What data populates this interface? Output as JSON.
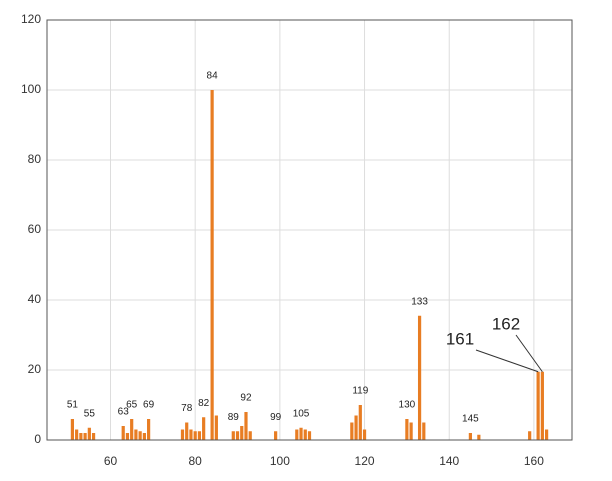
{
  "chart_data": {
    "type": "bar",
    "color": "#e87d23",
    "x": [
      51,
      52,
      53,
      54,
      55,
      56,
      63,
      64,
      65,
      66,
      67,
      68,
      69,
      77,
      78,
      79,
      80,
      81,
      82,
      84,
      85,
      89,
      90,
      91,
      92,
      93,
      99,
      104,
      105,
      106,
      107,
      117,
      118,
      119,
      120,
      130,
      131,
      133,
      134,
      145,
      147,
      159,
      161,
      162,
      163
    ],
    "values": [
      6,
      3,
      2,
      2,
      3.5,
      2,
      4,
      2,
      6,
      3,
      2.5,
      2,
      6,
      3,
      5,
      3,
      2.5,
      2.5,
      6.5,
      100,
      7,
      2.5,
      2.5,
      4,
      8,
      2.5,
      2.5,
      3,
      3.5,
      3,
      2.5,
      5,
      7,
      10,
      3,
      6,
      5,
      35.5,
      5,
      2,
      1.5,
      2.5,
      19.5,
      19.5,
      3
    ],
    "annotations": [
      51,
      55,
      63,
      65,
      69,
      78,
      82,
      84,
      89,
      92,
      99,
      105,
      119,
      130,
      133,
      145
    ],
    "callouts": [
      161,
      162
    ],
    "xlim": [
      45,
      169
    ],
    "xticks": [
      60,
      80,
      100,
      120,
      140,
      160
    ],
    "ylim": [
      0,
      120
    ],
    "yticks": [
      0,
      20,
      40,
      60,
      80,
      100,
      120
    ],
    "grid": true
  }
}
